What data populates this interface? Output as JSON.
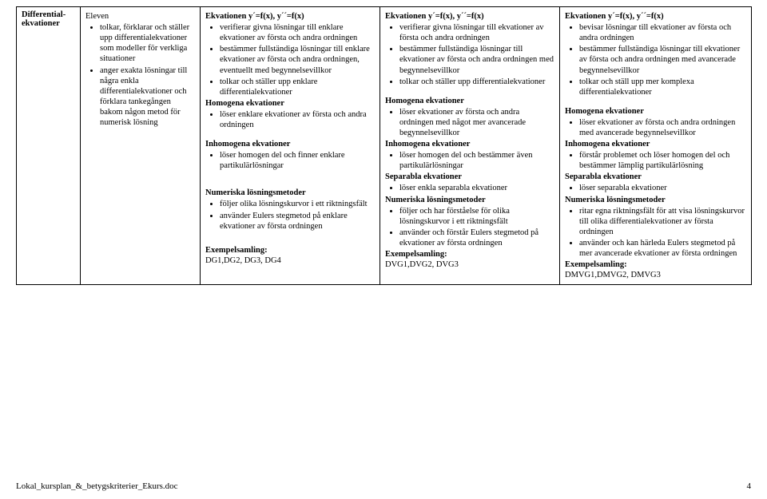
{
  "rowHeader": "Differential-\nekvationer",
  "col1": {
    "lead": "Eleven",
    "items": [
      "tolkar, förklarar och ställer upp differentialekvationer som modeller för verkliga situationer",
      "anger exakta lösningar till några enkla differentialekvationer och förklara tankegången bakom någon metod för numerisk lösning"
    ]
  },
  "col2": {
    "h1": "Ekvationen y´=f(x), y´´=f(x)",
    "l1": [
      "verifierar givna lösningar till enklare ekvationer av första och andra ordningen",
      "bestämmer fullständiga lösningar till enklare ekvationer av första och andra ordningen, eventuellt med begynnelsevillkor",
      "tolkar och ställer upp enklare differentialekvationer"
    ],
    "h2": "Homogena ekvationer",
    "l2": [
      "löser enklare ekvationer av första och andra ordningen"
    ],
    "h3": "Inhomogena ekvationer",
    "l3": [
      "löser homogen del och finner enklare partikulärlösningar"
    ],
    "h4": "Numeriska lösningsmetoder",
    "l4": [
      "följer olika lösningskurvor i ett riktningsfält",
      "använder Eulers stegmetod på enklare ekvationer av första ordningen"
    ],
    "ex_lbl": "Exempelsamling:",
    "ex_val": "DG1,DG2, DG3, DG4"
  },
  "col3": {
    "h1": "Ekvationen y´=f(x), y´´=f(x)",
    "l1": [
      "verifierar givna lösningar till ekvationer av första och andra ordningen",
      "bestämmer fullständiga lösningar till ekvationer av första och andra ordningen med begynnelsevillkor",
      "tolkar och ställer upp differentialekvationer"
    ],
    "h2": "Homogena ekvationer",
    "l2": [
      "löser ekvationer av första och andra ordningen med något mer avancerade begynnelsevillkor"
    ],
    "h3": "Inhomogena ekvationer",
    "l3": [
      "löser homogen del och bestämmer även partikulärlösningar"
    ],
    "h3b": "Separabla ekvationer",
    "l3b": [
      "löser enkla separabla ekvationer"
    ],
    "h4": "Numeriska lösningsmetoder",
    "l4": [
      "följer och har förståelse för olika lösningskurvor i ett riktningsfält",
      "använder och förstår Eulers stegmetod på ekvationer av första ordningen"
    ],
    "ex_lbl": "Exempelsamling:",
    "ex_val": "DVG1,DVG2, DVG3"
  },
  "col4": {
    "h1": "Ekvationen y´=f(x), y´´=f(x)",
    "l1": [
      "bevisar lösningar till ekvationer av första och andra ordningen",
      "bestämmer fullständiga lösningar till ekvationer av första och andra ordningen med avancerade begynnelsevillkor",
      "tolkar och ställ upp mer komplexa differentialekvationer"
    ],
    "h2": "Homogena ekvationer",
    "l2": [
      "löser ekvationer av första och andra ordningen med avancerade begynnelsevillkor"
    ],
    "h3": "Inhomogena ekvationer",
    "l3": [
      "förstår problemet och löser homogen del och bestämmer lämplig partikulärlösning"
    ],
    "h3b": "Separabla ekvationer",
    "l3b": [
      "löser separabla ekvationer"
    ],
    "h4": "Numeriska lösningsmetoder",
    "l4": [
      "ritar egna riktningsfält för att visa lösningskurvor till olika differentialekvationer av första ordningen",
      "använder och kan härleda Eulers stegmetod på mer avancerade ekvationer av första ordningen"
    ],
    "ex_lbl": "Exempelsamling:",
    "ex_val": "DMVG1,DMVG2, DMVG3"
  },
  "footer": {
    "filename": "Lokal_kursplan_&_betygskriterier_Ekurs.doc",
    "page": "4"
  }
}
